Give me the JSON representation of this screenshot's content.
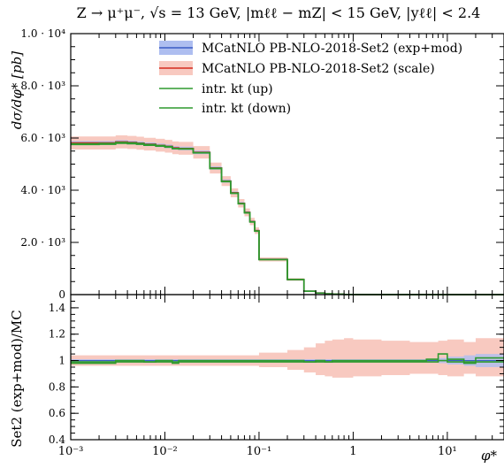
{
  "chart_data": [
    {
      "type": "line",
      "title": "Z → μ⁺μ⁻, √s = 13 GeV, |mℓℓ − mZ| < 15 GeV, |yℓℓ| < 2.4",
      "xlabel": "",
      "ylabel": "dσ/dφ* [pb]",
      "xscale": "log",
      "xlim": [
        0.001,
        40
      ],
      "ylim": [
        0,
        10000
      ],
      "y_ticks": [
        {
          "v": 0,
          "label": "0"
        },
        {
          "v": 2000,
          "label": "2.0 · 10³"
        },
        {
          "v": 4000,
          "label": "4.0 · 10³"
        },
        {
          "v": 6000,
          "label": "6.0 · 10³"
        },
        {
          "v": 8000,
          "label": "8.0 · 10³"
        },
        {
          "v": 10000,
          "label": "1.0 · 10⁴"
        }
      ],
      "legend_position": "top-right",
      "x_edges": [
        0.001,
        0.002,
        0.003,
        0.004,
        0.005,
        0.006,
        0.008,
        0.01,
        0.012,
        0.014,
        0.02,
        0.03,
        0.04,
        0.05,
        0.06,
        0.07,
        0.08,
        0.09,
        0.1,
        0.2,
        0.3,
        0.4,
        0.5,
        0.6,
        0.8,
        1.0,
        2.0,
        4.0,
        6.0,
        8.0,
        10.0,
        15.0,
        20.0,
        40.0
      ],
      "series": [
        {
          "name": "MCatNLO PB-NLO-2018-Set2 (exp+mod)",
          "color": "#3a5cc4",
          "band_color": "#aebef0",
          "values": [
            5810,
            5810,
            5850,
            5830,
            5800,
            5760,
            5720,
            5680,
            5620,
            5600,
            5450,
            4850,
            4350,
            3900,
            3500,
            3150,
            2800,
            2450,
            1350,
            580,
            130,
            60,
            30,
            15,
            5,
            2,
            1,
            0,
            0,
            0,
            0,
            0,
            0
          ],
          "band_lo": [
            5740,
            5740,
            5780,
            5760,
            5730,
            5690,
            5650,
            5610,
            5550,
            5530,
            5380,
            4790,
            4290,
            3850,
            3450,
            3110,
            2760,
            2420,
            1330,
            570,
            125,
            57,
            28,
            14,
            4,
            2,
            1,
            0,
            0,
            0,
            0,
            0,
            0
          ],
          "band_hi": [
            5880,
            5880,
            5920,
            5900,
            5870,
            5830,
            5790,
            5750,
            5690,
            5670,
            5520,
            4910,
            4410,
            3950,
            3550,
            3190,
            2840,
            2480,
            1370,
            590,
            135,
            63,
            32,
            16,
            6,
            2,
            1,
            0,
            0,
            0,
            0,
            0,
            0
          ]
        },
        {
          "name": "MCatNLO PB-NLO-2018-Set2 (scale)",
          "color": "#d42a1e",
          "band_color": "#f8c9c0",
          "values": [
            5810,
            5810,
            5850,
            5830,
            5800,
            5760,
            5720,
            5680,
            5620,
            5600,
            5450,
            4850,
            4350,
            3900,
            3500,
            3150,
            2800,
            2450,
            1350,
            580,
            130,
            60,
            30,
            15,
            5,
            2,
            1,
            0,
            0,
            0,
            0,
            0,
            0
          ],
          "band_lo": [
            5560,
            5560,
            5600,
            5580,
            5550,
            5520,
            5480,
            5440,
            5380,
            5360,
            5210,
            4640,
            4160,
            3730,
            3340,
            3000,
            2660,
            2320,
            1270,
            530,
            115,
            52,
            25,
            12,
            4,
            1,
            0,
            0,
            0,
            0,
            0,
            0,
            0
          ],
          "band_hi": [
            6060,
            6060,
            6100,
            6080,
            6050,
            6010,
            5970,
            5930,
            5870,
            5850,
            5690,
            5060,
            4540,
            4070,
            3660,
            3300,
            2940,
            2580,
            1430,
            630,
            150,
            72,
            38,
            20,
            7,
            3,
            1,
            0,
            0,
            0,
            0,
            0,
            0
          ]
        },
        {
          "name": "intr. kt (up)",
          "color": "#2e9a2e",
          "values": [
            5780,
            5790,
            5830,
            5810,
            5790,
            5750,
            5710,
            5670,
            5600,
            5590,
            5440,
            4840,
            4340,
            3890,
            3490,
            3140,
            2790,
            2440,
            1345,
            578,
            129,
            59,
            30,
            15,
            5,
            2,
            1,
            0,
            0,
            0,
            0,
            0,
            0
          ]
        },
        {
          "name": "intr. kt (down)",
          "color": "#2e9a2e",
          "values": [
            5750,
            5760,
            5800,
            5780,
            5760,
            5720,
            5690,
            5650,
            5590,
            5580,
            5430,
            4830,
            4330,
            3880,
            3480,
            3130,
            2780,
            2430,
            1340,
            576,
            128,
            59,
            29,
            15,
            5,
            2,
            1,
            0,
            0,
            0,
            0,
            0,
            0
          ]
        }
      ]
    },
    {
      "type": "line",
      "xlabel": "φ*",
      "ylabel": "Set2 (exp+mod)/MC",
      "xscale": "log",
      "xlim": [
        0.001,
        40
      ],
      "ylim": [
        0.4,
        1.5
      ],
      "x_ticks": [
        {
          "v": 0.001,
          "label": "10⁻³"
        },
        {
          "v": 0.01,
          "label": "10⁻²"
        },
        {
          "v": 0.1,
          "label": "10⁻¹"
        },
        {
          "v": 1,
          "label": "1"
        },
        {
          "v": 10,
          "label": "10¹"
        }
      ],
      "y_ticks": [
        {
          "v": 0.4,
          "label": "0.4"
        },
        {
          "v": 0.6,
          "label": "0.6"
        },
        {
          "v": 0.8,
          "label": "0.8"
        },
        {
          "v": 1.0,
          "label": "1"
        },
        {
          "v": 1.2,
          "label": "1.2"
        },
        {
          "v": 1.4,
          "label": "1.4"
        }
      ],
      "x_edges": [
        0.001,
        0.002,
        0.003,
        0.004,
        0.005,
        0.006,
        0.008,
        0.01,
        0.012,
        0.014,
        0.02,
        0.03,
        0.04,
        0.05,
        0.06,
        0.07,
        0.08,
        0.09,
        0.1,
        0.2,
        0.3,
        0.4,
        0.5,
        0.6,
        0.8,
        1.0,
        2.0,
        4.0,
        6.0,
        8.0,
        10.0,
        15.0,
        20.0,
        40.0
      ],
      "bands": [
        {
          "name": "scale",
          "color": "#f8c9c0",
          "lo": [
            0.96,
            0.96,
            0.96,
            0.96,
            0.96,
            0.96,
            0.96,
            0.96,
            0.96,
            0.96,
            0.96,
            0.96,
            0.96,
            0.96,
            0.96,
            0.96,
            0.96,
            0.96,
            0.95,
            0.93,
            0.91,
            0.89,
            0.88,
            0.87,
            0.87,
            0.88,
            0.89,
            0.9,
            0.9,
            0.89,
            0.88,
            0.9,
            0.88
          ],
          "hi": [
            1.04,
            1.04,
            1.04,
            1.04,
            1.04,
            1.04,
            1.04,
            1.04,
            1.04,
            1.04,
            1.04,
            1.04,
            1.04,
            1.04,
            1.04,
            1.04,
            1.04,
            1.04,
            1.06,
            1.08,
            1.1,
            1.13,
            1.15,
            1.16,
            1.17,
            1.16,
            1.15,
            1.14,
            1.14,
            1.15,
            1.16,
            1.14,
            1.17
          ]
        },
        {
          "name": "exp+mod",
          "color": "#aebef0",
          "lo": [
            0.99,
            0.99,
            0.99,
            0.99,
            0.99,
            0.99,
            0.99,
            0.99,
            0.99,
            0.99,
            0.99,
            0.99,
            0.99,
            0.99,
            0.99,
            0.99,
            0.99,
            0.99,
            0.99,
            0.99,
            0.99,
            0.99,
            0.99,
            0.99,
            0.99,
            0.99,
            0.99,
            0.99,
            0.99,
            0.98,
            0.97,
            0.96,
            0.95
          ],
          "hi": [
            1.01,
            1.01,
            1.01,
            1.01,
            1.01,
            1.01,
            1.01,
            1.01,
            1.01,
            1.01,
            1.01,
            1.01,
            1.01,
            1.01,
            1.01,
            1.01,
            1.01,
            1.01,
            1.01,
            1.01,
            1.01,
            1.01,
            1.01,
            1.01,
            1.01,
            1.01,
            1.01,
            1.01,
            1.01,
            1.02,
            1.03,
            1.04,
            1.05
          ]
        }
      ],
      "series": [
        {
          "name": "intr. kt (up)",
          "color": "#2e9a2e",
          "values": [
            0.99,
            0.99,
            1.0,
            1.0,
            1.0,
            0.99,
            1.0,
            1.0,
            0.98,
            1.0,
            1.0,
            1.0,
            1.0,
            1.0,
            1.0,
            1.0,
            1.0,
            1.0,
            1.0,
            1.0,
            0.99,
            1.0,
            0.99,
            1.0,
            1.0,
            1.0,
            1.0,
            1.0,
            1.01,
            1.05,
            1.01,
            0.98,
            1.02
          ]
        },
        {
          "name": "intr. kt (down)",
          "color": "#2e9a2e",
          "values": [
            0.98,
            0.98,
            0.99,
            0.99,
            0.99,
            0.99,
            0.99,
            0.99,
            0.99,
            0.99,
            0.99,
            0.99,
            0.99,
            0.99,
            0.99,
            0.99,
            0.99,
            0.99,
            0.99,
            0.99,
            0.99,
            0.99,
            0.99,
            0.99,
            0.99,
            0.99,
            0.99,
            0.99,
            0.99,
            1.0,
            0.99,
            0.99,
            0.99
          ]
        }
      ]
    }
  ]
}
